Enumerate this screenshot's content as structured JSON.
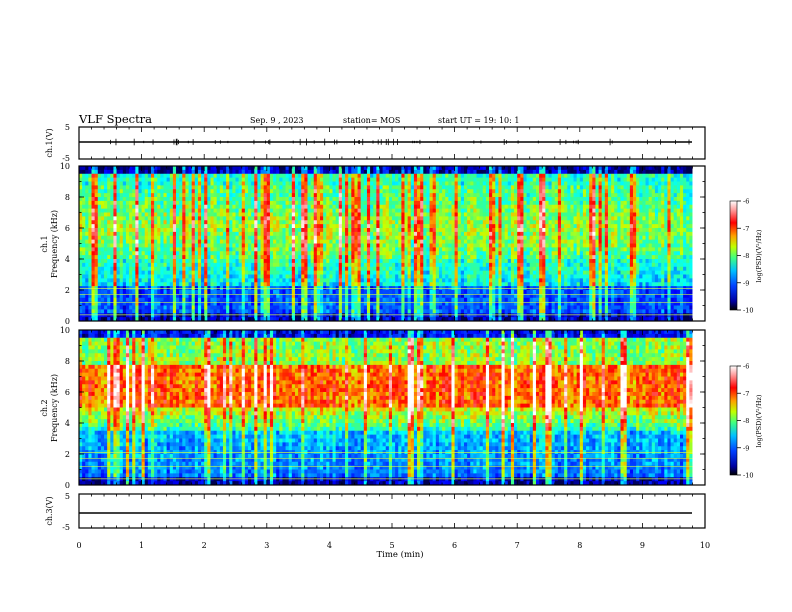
{
  "header": {
    "title": "VLF Spectra",
    "date": "Sep. 9 , 2023",
    "station": "station= MOS",
    "start": "start UT = 19: 10: 1"
  },
  "chart_data": [
    {
      "type": "line",
      "panel": "ch1-waveform",
      "ylabel": "ch.1(V)",
      "yticks": [
        "5",
        "-5"
      ],
      "ylim": [
        -5,
        5
      ],
      "xlim": [
        0,
        10
      ],
      "series": [
        {
          "values": [
            0
          ]
        }
      ]
    },
    {
      "type": "heatmap",
      "panel": "ch1-spectrogram",
      "ylabel_top": "ch.1",
      "ylabel": "Frequency (kHz)",
      "yticks": [
        "0",
        "2",
        "4",
        "6",
        "8",
        "10"
      ],
      "ylim": [
        0,
        10
      ],
      "xlim": [
        0,
        10
      ],
      "data_end_min": 9.8,
      "colorbar": {
        "label": "log(PSD)(V²/Hz)",
        "ticks": [
          "-6",
          "-7",
          "-8",
          "-9",
          "-10"
        ],
        "range": [
          -10,
          -6
        ]
      }
    },
    {
      "type": "heatmap",
      "panel": "ch2-spectrogram",
      "ylabel_top": "ch.2",
      "ylabel": "Frequency (kHz)",
      "yticks": [
        "0",
        "2",
        "4",
        "6",
        "8",
        "10"
      ],
      "ylim": [
        0,
        10
      ],
      "xlim": [
        0,
        10
      ],
      "data_end_min": 9.8,
      "colorbar": {
        "label": "log(PSD)(V²/Hz)",
        "ticks": [
          "-6",
          "-7",
          "-8",
          "-9",
          "-10"
        ],
        "range": [
          -10,
          -6
        ]
      }
    },
    {
      "type": "line",
      "panel": "ch3-waveform",
      "ylabel": "ch.3(V)",
      "yticks": [
        "5",
        "-5"
      ],
      "ylim": [
        -5,
        5
      ],
      "xlim": [
        0,
        10
      ],
      "xlabel": "Time (min)",
      "xticks": [
        "0",
        "1",
        "2",
        "3",
        "4",
        "5",
        "6",
        "7",
        "8",
        "9",
        "10"
      ],
      "series": [
        {
          "values": [
            -1
          ]
        }
      ]
    }
  ],
  "colors": {
    "jet": [
      "#000080",
      "#0000ff",
      "#0080ff",
      "#00ffff",
      "#40ff80",
      "#ffff00",
      "#ff8000",
      "#ff0000",
      "#ffc0c0",
      "#ffffff"
    ]
  }
}
